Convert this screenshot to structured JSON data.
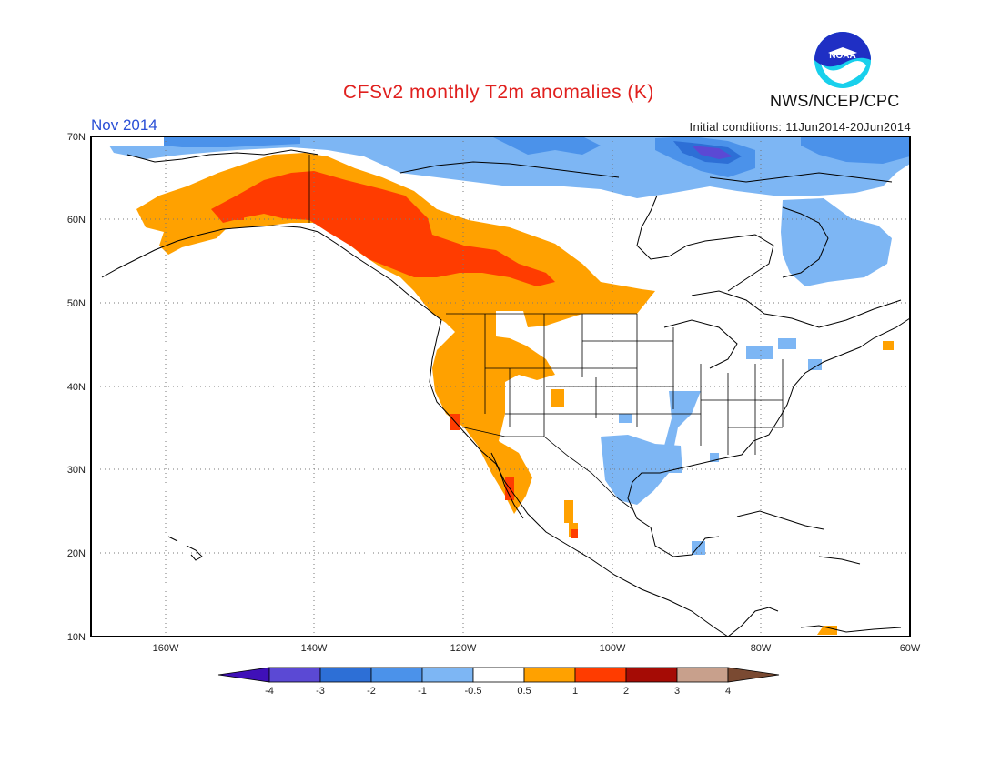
{
  "header": {
    "title": "CFSv2 monthly T2m anomalies (K)",
    "month": "Nov 2014",
    "initial_conditions": "Initial conditions: 11Jun2014-20Jun2014",
    "agency": "NWS/NCEP/CPC",
    "logo_text": "NOAA"
  },
  "map": {
    "projection": "lat-lon",
    "lon_range": [
      -170,
      -60
    ],
    "lat_range": [
      10,
      70
    ],
    "lon_ticks": [
      "160W",
      "140W",
      "120W",
      "100W",
      "80W",
      "60W"
    ],
    "lat_ticks": [
      "10N",
      "20N",
      "30N",
      "40N",
      "50N",
      "60N",
      "70N"
    ],
    "grid": "dotted"
  },
  "colorbar": {
    "labels": [
      "-4",
      "-3",
      "-2",
      "-1",
      "-0.5",
      "0.5",
      "1",
      "2",
      "3",
      "4"
    ],
    "colors": [
      "#3f10b8",
      "#5b49d4",
      "#2d6fd6",
      "#4b92ea",
      "#7db6f4",
      "#ffffff",
      "#ffa100",
      "#ff3c00",
      "#a50b05",
      "#c8a08c",
      "#7a4a32"
    ]
  }
}
